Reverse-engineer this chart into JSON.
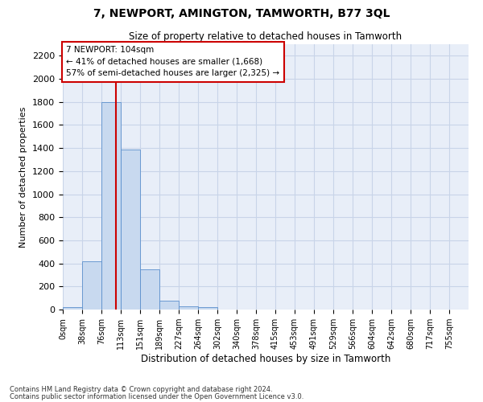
{
  "title": "7, NEWPORT, AMINGTON, TAMWORTH, B77 3QL",
  "subtitle": "Size of property relative to detached houses in Tamworth",
  "xlabel": "Distribution of detached houses by size in Tamworth",
  "ylabel": "Number of detached properties",
  "bar_labels": [
    "0sqm",
    "38sqm",
    "76sqm",
    "113sqm",
    "151sqm",
    "189sqm",
    "227sqm",
    "264sqm",
    "302sqm",
    "340sqm",
    "378sqm",
    "415sqm",
    "453sqm",
    "491sqm",
    "529sqm",
    "566sqm",
    "604sqm",
    "642sqm",
    "680sqm",
    "717sqm",
    "755sqm"
  ],
  "bar_values": [
    20,
    420,
    1800,
    1390,
    350,
    80,
    30,
    20,
    0,
    0,
    0,
    0,
    0,
    0,
    0,
    0,
    0,
    0,
    0,
    0,
    0
  ],
  "bar_color": "#c8d9ef",
  "bar_edge_color": "#5a8fcc",
  "vline_color": "#cc0000",
  "annotation_text": "7 NEWPORT: 104sqm\n← 41% of detached houses are smaller (1,668)\n57% of semi-detached houses are larger (2,325) →",
  "annotation_box_color": "#ffffff",
  "annotation_box_edge": "#cc0000",
  "ylim": [
    0,
    2300
  ],
  "yticks": [
    0,
    200,
    400,
    600,
    800,
    1000,
    1200,
    1400,
    1600,
    1800,
    2000,
    2200
  ],
  "grid_color": "#c8d4e8",
  "bg_color": "#e8eef8",
  "footer_line1": "Contains HM Land Registry data © Crown copyright and database right 2024.",
  "footer_line2": "Contains public sector information licensed under the Open Government Licence v3.0."
}
